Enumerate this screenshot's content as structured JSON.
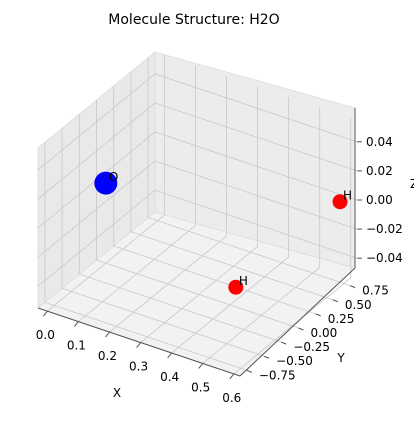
{
  "chart_data": {
    "type": "scatter",
    "title": "Molecule Structure: H2O",
    "xlabel": "X",
    "ylabel": "Y",
    "zlabel": "Z",
    "xlim": [
      -0.03,
      0.62
    ],
    "ylim": [
      -0.85,
      0.85
    ],
    "zlim": [
      -0.055,
      0.055
    ],
    "x_ticks": [
      "0.0",
      "0.1",
      "0.2",
      "0.3",
      "0.4",
      "0.5",
      "0.6"
    ],
    "y_ticks": [
      "−0.75",
      "−0.50",
      "−0.25",
      "0.00",
      "0.25",
      "0.50",
      "0.75"
    ],
    "z_ticks": [
      "−0.04",
      "−0.02",
      "0.00",
      "0.02",
      "0.04"
    ],
    "grid": true,
    "atoms": [
      {
        "label": "O",
        "x": 0.0,
        "y": 0.0,
        "z": 0.0,
        "color": "#0000ff"
      },
      {
        "label": "H",
        "x": 0.586,
        "y": 0.757,
        "z": 0.0,
        "color": "#ff0000"
      },
      {
        "label": "H",
        "x": 0.586,
        "y": -0.757,
        "z": 0.0,
        "color": "#ff0000"
      }
    ]
  }
}
